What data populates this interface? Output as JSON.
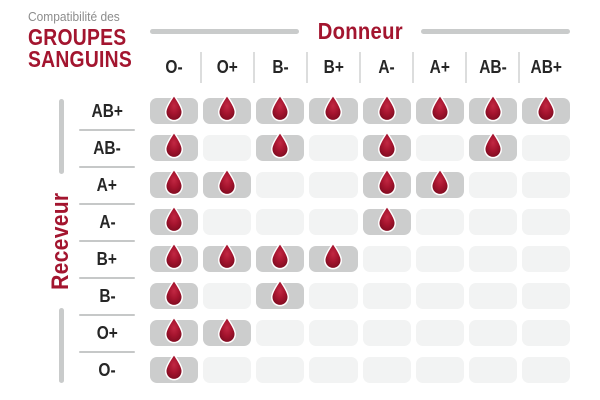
{
  "title": {
    "line1": "Compatibilité des",
    "line2": "GROUPES",
    "line3": "SANGUINS"
  },
  "chart_data": {
    "type": "heatmap",
    "title": "Compatibilité des groupes sanguins",
    "columns_label": "Donneur",
    "rows_label": "Receveur",
    "columns": [
      "O-",
      "O+",
      "B-",
      "B+",
      "A-",
      "A+",
      "AB-",
      "AB+"
    ],
    "rows": [
      "AB+",
      "AB-",
      "A+",
      "A-",
      "B+",
      "B-",
      "O+",
      "O-"
    ],
    "matrix": [
      [
        1,
        1,
        1,
        1,
        1,
        1,
        1,
        1
      ],
      [
        1,
        0,
        1,
        0,
        1,
        0,
        1,
        0
      ],
      [
        1,
        1,
        0,
        0,
        1,
        1,
        0,
        0
      ],
      [
        1,
        0,
        0,
        0,
        1,
        0,
        0,
        0
      ],
      [
        1,
        1,
        1,
        1,
        0,
        0,
        0,
        0
      ],
      [
        1,
        0,
        1,
        0,
        0,
        0,
        0,
        0
      ],
      [
        1,
        1,
        0,
        0,
        0,
        0,
        0,
        0
      ],
      [
        1,
        0,
        0,
        0,
        0,
        0,
        0,
        0
      ]
    ],
    "cell_marker": "blood-drop-icon",
    "legend_position": "none",
    "grid": false
  },
  "icons": {
    "compatible_marker": "blood-drop-icon"
  },
  "colors": {
    "accent_red": "#a3152f",
    "drop_highlight": "#c22843",
    "drop_mid": "#a5142e",
    "drop_edge": "#7a0b1f",
    "drop_outline": "#ffffff",
    "cell_filled": "#cccdcd",
    "cell_empty": "#f2f3f3",
    "line_gray": "#c9cbcb",
    "header_separator": "#dcdddd",
    "label_text": "#262626",
    "subtitle_gray": "#8c8c8c",
    "background": "#ffffff"
  }
}
